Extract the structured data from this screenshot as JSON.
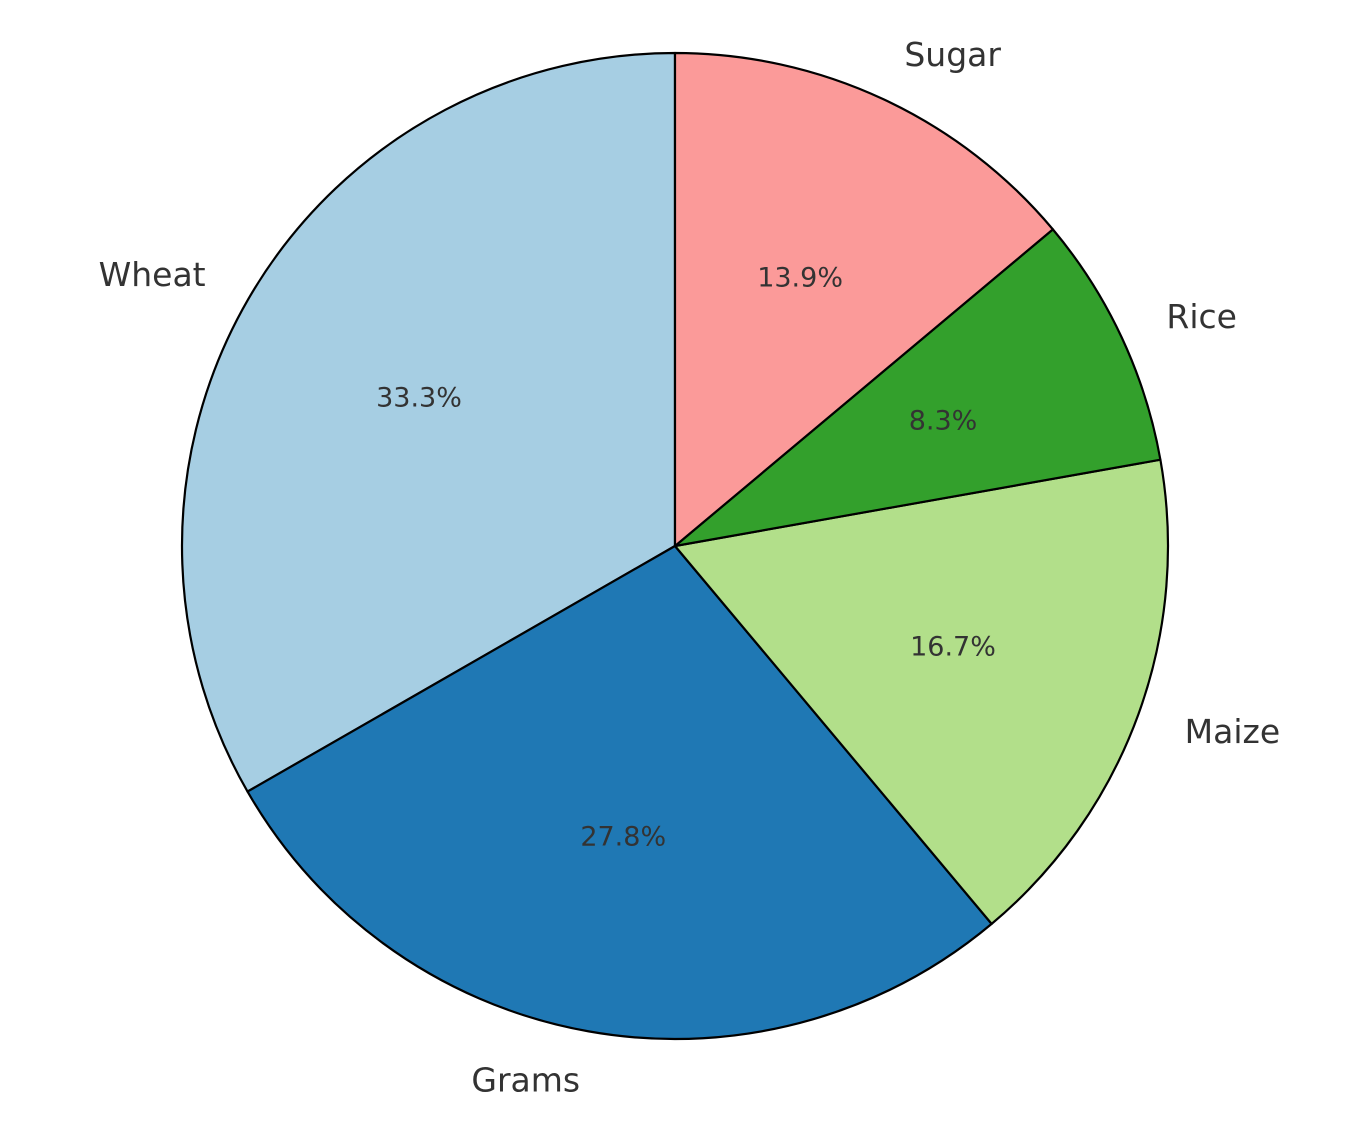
{
  "chart_data": {
    "type": "pie",
    "title": "",
    "categories": [
      "Wheat",
      "Grams",
      "Maize",
      "Rice",
      "Sugar"
    ],
    "values": [
      33.3,
      27.8,
      16.7,
      8.3,
      13.9
    ],
    "percent_labels": [
      "33.3%",
      "27.8%",
      "16.7%",
      "8.3%",
      "13.9%"
    ],
    "colors": [
      "#a6cee3",
      "#1f78b4",
      "#b2df8a",
      "#33a02c",
      "#fb9a99"
    ],
    "start_angle": "top",
    "direction": "counterclockwise",
    "legend": "none",
    "grid": false
  }
}
